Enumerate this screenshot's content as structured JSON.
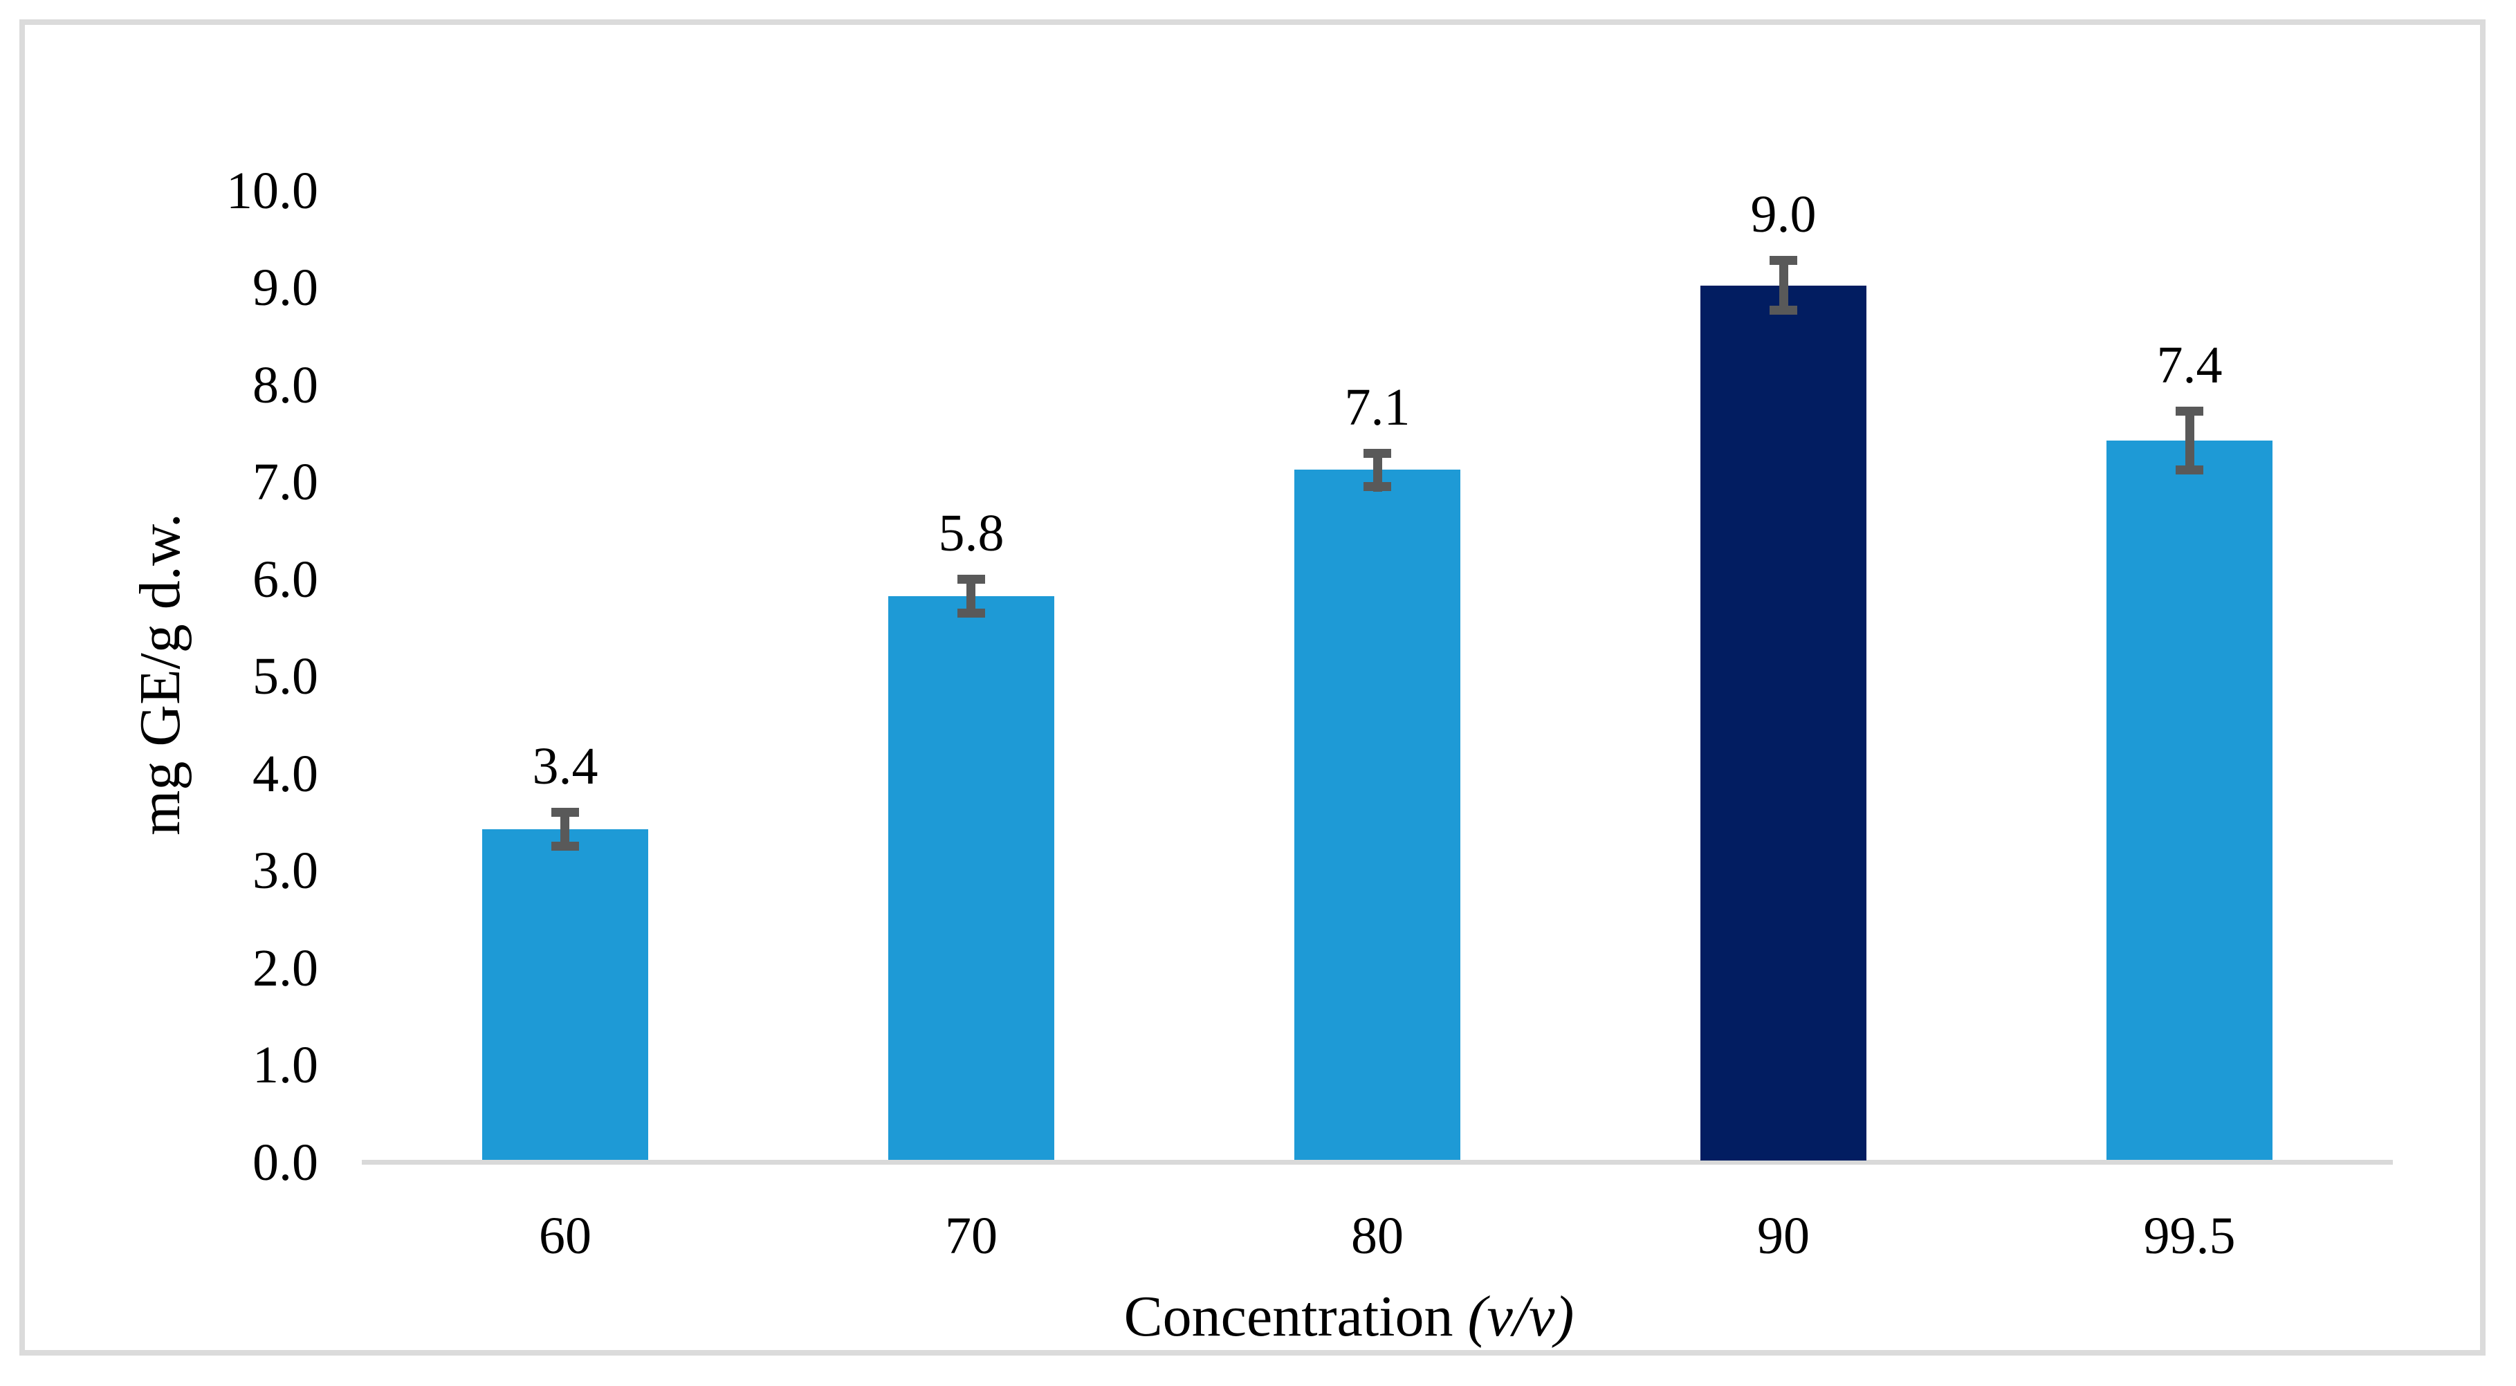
{
  "figure": {
    "background_color": "#FFFFFF",
    "border_color": "#DBDBDB",
    "text_color": "#000000"
  },
  "chart_data": {
    "type": "bar",
    "title": "",
    "categories": [
      "60",
      "70",
      "80",
      "90",
      "99.5"
    ],
    "values": [
      3.4,
      5.8,
      7.1,
      9.0,
      7.4
    ],
    "value_labels": [
      "3.4",
      "5.8",
      "7.1",
      "9.0",
      "7.4"
    ],
    "errors": [
      0.22,
      0.22,
      0.22,
      0.3,
      0.35
    ],
    "bar_colors": [
      "#1E9AD6",
      "#1E9AD6",
      "#1E9AD6",
      "#021D61",
      "#1E9AD6"
    ],
    "highlighted_category": "90",
    "xlabel": "Concentration (v/v)",
    "xlabel_prefix": "Concentration ",
    "xlabel_italic": "(v/v)",
    "ylabel": "mg GE/g d.w.",
    "ylim": [
      0.0,
      10.0
    ],
    "ytick_step": 1.0,
    "ytick_labels": [
      "0.0",
      "1.0",
      "2.0",
      "3.0",
      "4.0",
      "5.0",
      "6.0",
      "7.0",
      "8.0",
      "9.0",
      "10.0"
    ],
    "grid": false,
    "legend": false,
    "colors": {
      "bar": "#1E9AD6",
      "highlight_bar": "#021D61",
      "error_bar": "#595959",
      "axis_line": "#D9D9D9"
    }
  }
}
